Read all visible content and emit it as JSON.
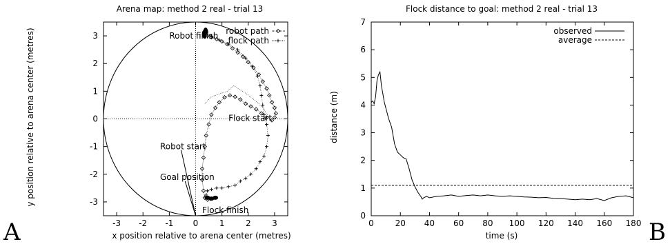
{
  "panel_labels": [
    "A",
    "B"
  ],
  "chart_data": [
    {
      "type": "scatter",
      "title": "Arena map: method 2 real - trial 13",
      "xlabel": "x position relative to arena center (metres)",
      "ylabel": "y position relative to arena center (metres)",
      "xlim": [
        -3.5,
        3.5
      ],
      "ylim": [
        -3.5,
        3.5
      ],
      "xticks": [
        -3,
        -2,
        -1,
        0,
        1,
        2,
        3
      ],
      "yticks": [
        -3,
        -2,
        -1,
        0,
        1,
        2,
        3
      ],
      "arena_radius": 3.5,
      "grid": false,
      "crosshair_at_origin": true,
      "legend_placement": "top-right",
      "series": [
        {
          "name": "robot path",
          "marker": "diamond",
          "points": [
            [
              0.35,
              3.1
            ],
            [
              0.45,
              3.0
            ],
            [
              0.6,
              2.95
            ],
            [
              0.8,
              2.88
            ],
            [
              1.0,
              2.8
            ],
            [
              1.2,
              2.7
            ],
            [
              1.4,
              2.55
            ],
            [
              1.6,
              2.4
            ],
            [
              1.8,
              2.25
            ],
            [
              2.0,
              2.05
            ],
            [
              2.2,
              1.85
            ],
            [
              2.4,
              1.6
            ],
            [
              2.55,
              1.35
            ],
            [
              2.7,
              1.1
            ],
            [
              2.8,
              0.85
            ],
            [
              2.9,
              0.6
            ],
            [
              3.0,
              0.4
            ],
            [
              3.05,
              0.2
            ],
            [
              3.0,
              0.05
            ],
            [
              2.9,
              -0.05
            ],
            [
              2.7,
              0.05
            ],
            [
              2.5,
              0.2
            ],
            [
              2.3,
              0.35
            ],
            [
              2.1,
              0.45
            ],
            [
              1.9,
              0.55
            ],
            [
              1.7,
              0.7
            ],
            [
              1.5,
              0.8
            ],
            [
              1.3,
              0.85
            ],
            [
              1.1,
              0.78
            ],
            [
              0.9,
              0.6
            ],
            [
              0.75,
              0.4
            ],
            [
              0.6,
              0.15
            ],
            [
              0.5,
              -0.2
            ],
            [
              0.4,
              -0.6
            ],
            [
              0.35,
              -1.0
            ],
            [
              0.3,
              -1.4
            ],
            [
              0.25,
              -1.8
            ],
            [
              0.25,
              -2.2
            ],
            [
              0.3,
              -2.6
            ],
            [
              0.35,
              -2.85
            ],
            [
              0.45,
              -2.92
            ]
          ]
        },
        {
          "name": "flock path",
          "marker": "plus",
          "points": [
            [
              0.35,
              3.2
            ],
            [
              0.6,
              3.0
            ],
            [
              0.9,
              2.85
            ],
            [
              1.25,
              2.7
            ],
            [
              1.6,
              2.5
            ],
            [
              1.9,
              2.2
            ],
            [
              2.15,
              1.9
            ],
            [
              2.35,
              1.55
            ],
            [
              2.45,
              1.2
            ],
            [
              2.5,
              0.85
            ],
            [
              2.55,
              0.5
            ],
            [
              2.6,
              0.15
            ],
            [
              2.7,
              -0.2
            ],
            [
              2.75,
              -0.6
            ],
            [
              2.7,
              -1.0
            ],
            [
              2.6,
              -1.35
            ],
            [
              2.45,
              -1.55
            ],
            [
              2.3,
              -1.8
            ],
            [
              2.1,
              -2.0
            ],
            [
              1.9,
              -2.15
            ],
            [
              1.7,
              -2.25
            ],
            [
              1.5,
              -2.4
            ],
            [
              1.25,
              -2.45
            ],
            [
              1.0,
              -2.5
            ],
            [
              0.8,
              -2.5
            ],
            [
              0.6,
              -2.55
            ],
            [
              0.45,
              -2.6
            ],
            [
              0.4,
              -2.75
            ],
            [
              0.4,
              -2.85
            ],
            [
              0.55,
              -2.9
            ],
            [
              0.7,
              -2.85
            ]
          ]
        }
      ],
      "flock_loop": [
        [
          0.35,
          0.55
        ],
        [
          0.6,
          0.8
        ],
        [
          0.9,
          0.9
        ],
        [
          1.2,
          1.0
        ],
        [
          1.45,
          1.2
        ],
        [
          1.7,
          1.05
        ],
        [
          1.95,
          0.9
        ],
        [
          2.15,
          0.75
        ],
        [
          2.4,
          0.55
        ],
        [
          2.6,
          0.35
        ],
        [
          2.75,
          0.1
        ]
      ],
      "annotations": [
        {
          "text": "Robot finish",
          "x": -1.0,
          "y": 3.0,
          "anchor": "start"
        },
        {
          "text": "Flock start",
          "x": 1.25,
          "y": 0.02,
          "anchor": "start"
        },
        {
          "text": "Robot start",
          "x": -1.35,
          "y": -1.0,
          "anchor": "start"
        },
        {
          "text": "Goal position",
          "x": -1.35,
          "y": -2.1,
          "anchor": "start"
        },
        {
          "text": "Flock finish",
          "x": 0.25,
          "y": -3.3,
          "anchor": "start"
        }
      ],
      "pointer_lines": [
        {
          "from": [
            -0.55,
            -1.12
          ],
          "to": [
            0.0,
            -3.5
          ]
        },
        {
          "from": [
            -0.4,
            -2.25
          ],
          "to": [
            0.0,
            -3.5
          ]
        }
      ]
    },
    {
      "type": "line",
      "title": "Flock distance to goal: method 2 real - trial 13",
      "xlabel": "time (s)",
      "ylabel": "distance (m)",
      "xlim": [
        0,
        180
      ],
      "ylim": [
        0,
        7
      ],
      "xticks": [
        0,
        20,
        40,
        60,
        80,
        100,
        120,
        140,
        160,
        180
      ],
      "yticks": [
        0,
        1,
        2,
        3,
        4,
        5,
        6,
        7
      ],
      "grid": false,
      "legend_placement": "top-right",
      "series": [
        {
          "name": "observed",
          "style": "solid",
          "x": [
            0,
            1,
            2,
            3,
            4,
            5,
            6,
            7,
            8,
            9,
            10,
            12,
            14,
            16,
            18,
            20,
            22,
            24,
            26,
            28,
            30,
            32,
            34,
            35,
            36,
            38,
            40,
            45,
            50,
            55,
            60,
            65,
            70,
            75,
            80,
            85,
            90,
            95,
            100,
            105,
            110,
            115,
            120,
            125,
            130,
            135,
            140,
            145,
            150,
            155,
            160,
            165,
            170,
            175,
            180
          ],
          "y": [
            4.1,
            4.15,
            4.05,
            4.3,
            4.9,
            5.1,
            5.2,
            4.7,
            4.4,
            4.1,
            3.9,
            3.5,
            3.2,
            2.6,
            2.3,
            2.2,
            2.1,
            2.05,
            1.7,
            1.3,
            1.05,
            0.85,
            0.7,
            0.6,
            0.65,
            0.7,
            0.65,
            0.7,
            0.72,
            0.75,
            0.7,
            0.73,
            0.75,
            0.72,
            0.75,
            0.72,
            0.7,
            0.72,
            0.7,
            0.68,
            0.67,
            0.65,
            0.66,
            0.63,
            0.62,
            0.6,
            0.58,
            0.6,
            0.58,
            0.62,
            0.55,
            0.65,
            0.7,
            0.72,
            0.65
          ]
        },
        {
          "name": "average",
          "style": "dashed",
          "x": [
            0,
            180
          ],
          "y": [
            1.1,
            1.1
          ]
        }
      ]
    }
  ]
}
